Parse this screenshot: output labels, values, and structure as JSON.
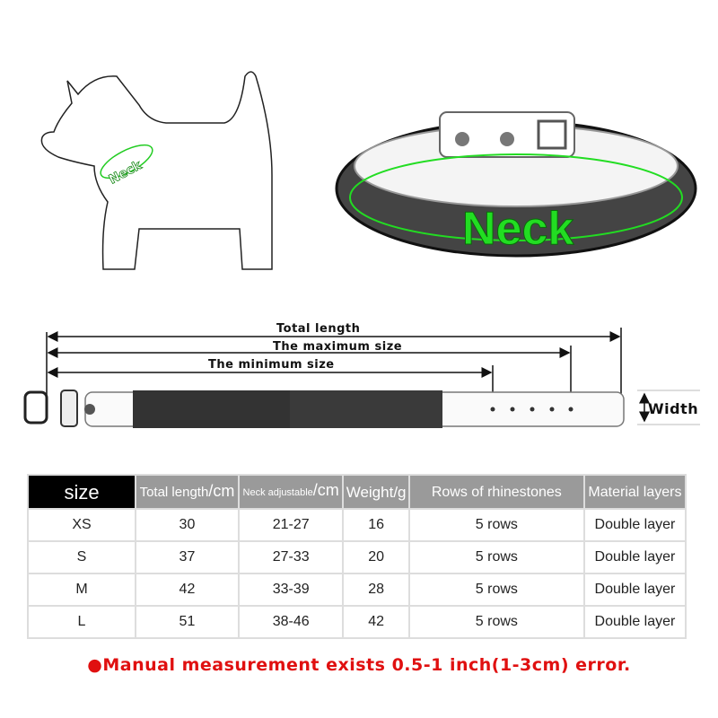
{
  "dog_diagram": {
    "neck_label": "Neck"
  },
  "collar_diagram": {
    "neck_label": "Neck",
    "accent_color": "#22dd22"
  },
  "dimensions": {
    "total_length": "Total length",
    "maximum_size": "The maximum size",
    "minimum_size": "The minimum size",
    "width": "Width"
  },
  "size_table": {
    "headers": [
      {
        "text": "size"
      },
      {
        "text": "Total length",
        "unit": "/cm"
      },
      {
        "text": "Neck adjustable",
        "unit": "/cm"
      },
      {
        "text": "Weight",
        "unit": "/g"
      },
      {
        "text": "Rows of rhinestones"
      },
      {
        "text": "Material layers"
      }
    ],
    "rows": [
      [
        "XS",
        "30",
        "21-27",
        "16",
        "5 rows",
        "Double layer"
      ],
      [
        "S",
        "37",
        "27-33",
        "20",
        "5 rows",
        "Double layer"
      ],
      [
        "M",
        "42",
        "33-39",
        "28",
        "5 rows",
        "Double layer"
      ],
      [
        "L",
        "51",
        "38-46",
        "42",
        "5 rows",
        "Double layer"
      ]
    ]
  },
  "note": "●Manual measurement exists 0.5-1 inch(1-3cm) error."
}
